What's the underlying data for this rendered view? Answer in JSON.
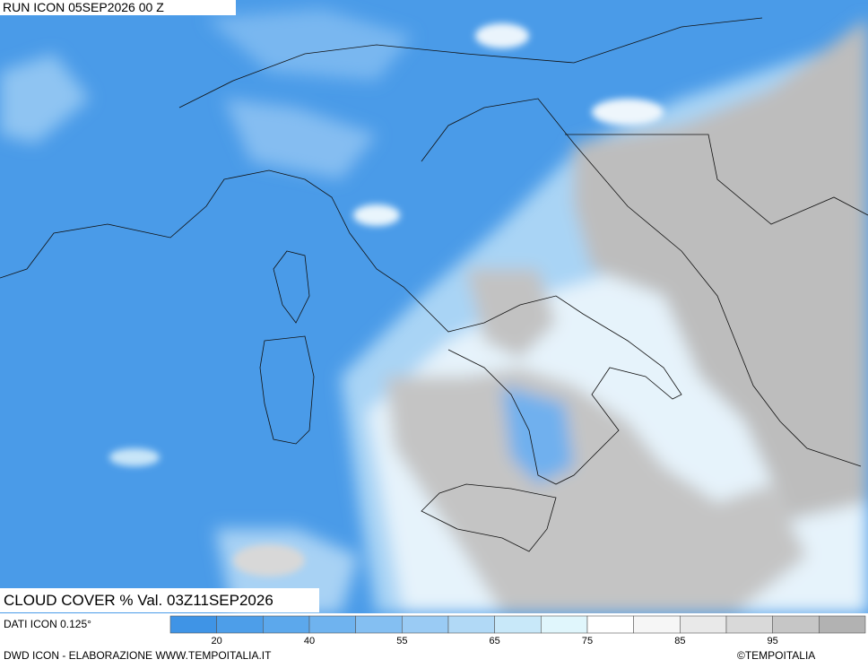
{
  "header": {
    "run": "RUN ICON 05SEP2026 00 Z"
  },
  "title": "CLOUD COVER % Val. 03Z11SEP2026",
  "source": "DATI ICON 0.125°",
  "legend": {
    "ticks": [
      20,
      40,
      55,
      65,
      75,
      85,
      95
    ],
    "colors": [
      "#3f94e6",
      "#4d9ee9",
      "#5ca8ec",
      "#6fb3ef",
      "#84bff2",
      "#9acbf4",
      "#b1d9f6",
      "#c8e8f9",
      "#e0f6fc",
      "#ffffff",
      "#f6f6f6",
      "#e9e9e9",
      "#d9d9d9",
      "#c6c6c6",
      "#b2b2b2"
    ]
  },
  "footer": {
    "credit": "DWD ICON - ELABORAZIONE WWW.TEMPOITALIA.IT",
    "brand": "©TEMPOITALIA"
  }
}
